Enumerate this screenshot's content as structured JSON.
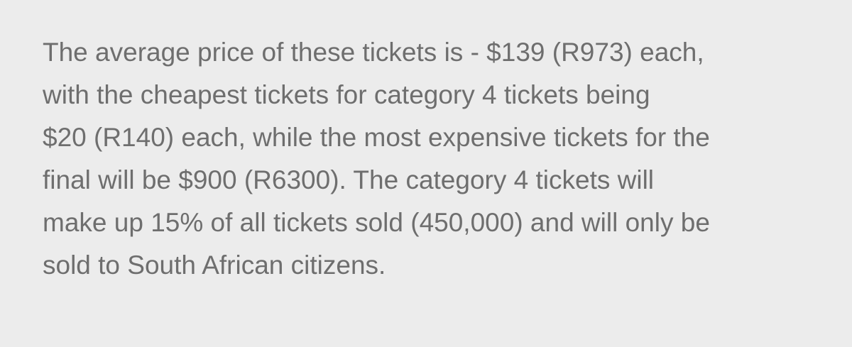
{
  "paragraph": {
    "lines": [
      "The average price of these tickets is - $139 (R973) each,",
      "with the cheapest tickets for category 4 tickets being",
      "$20 (R140) each, while the most expensive tickets for the",
      "final will be $900 (R6300). The category 4 tickets will",
      "make up 15% of all tickets sold (450,000) and will only be",
      "sold to South African citizens."
    ]
  },
  "colors": {
    "background": "#ececec",
    "text": "#6e6e6e"
  }
}
